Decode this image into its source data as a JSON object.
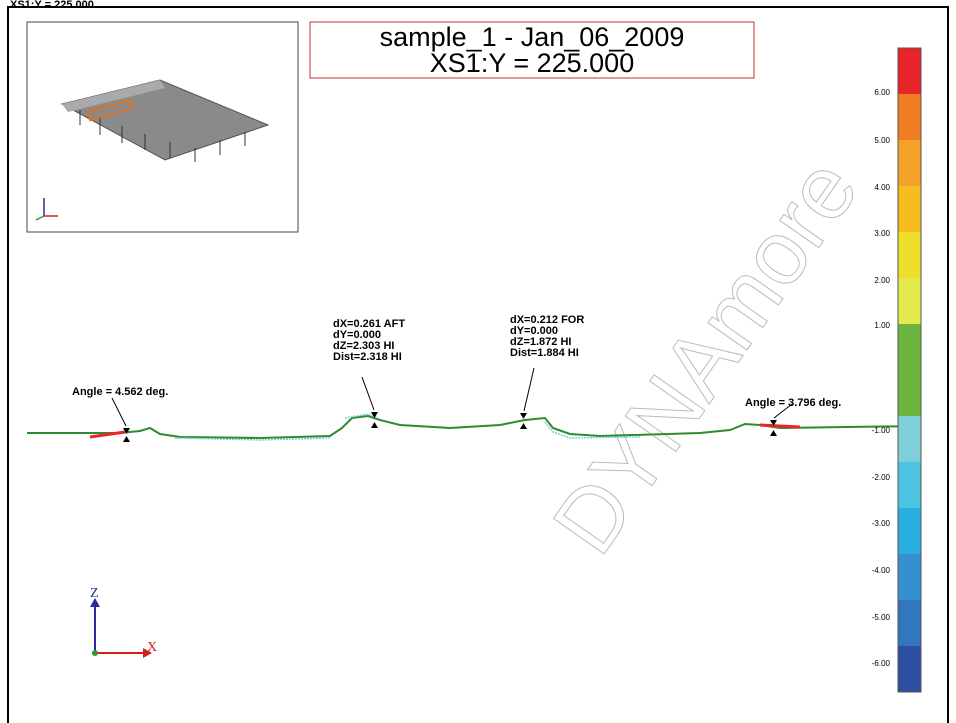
{
  "header": "XS1:Y = 225.000",
  "title": {
    "line1": "sample_1 - Jan_06_2009",
    "line2": "XS1:Y = 225.000"
  },
  "colorbar": {
    "labels": [
      "6.00",
      "5.00",
      "4.00",
      "3.00",
      "2.00",
      "1.00",
      "-1.00",
      "-2.00",
      "-3.00",
      "-4.00",
      "-5.00",
      "-6.00"
    ],
    "colors": [
      "#e8252a",
      "#f07d22",
      "#f5a22a",
      "#f6bd1f",
      "#eee02a",
      "#e4ea4c",
      "#6cb43f",
      "#6cb43f",
      "#7ecfd9",
      "#4cc4e0",
      "#2aaee2",
      "#3590d0",
      "#3276c0",
      "#2e4fa0"
    ]
  },
  "angles": [
    "Angle = 4.562 deg.",
    "Angle = 3.796 deg."
  ],
  "measurements": [
    [
      "dX=0.261 AFT",
      "dY=0.000",
      "dZ=2.303 HI",
      "Dist=2.318 HI"
    ],
    [
      "dX=0.212 FOR",
      "dY=0.000",
      "dZ=1.872 HI",
      "Dist=1.884 HI"
    ]
  ],
  "axes": {
    "z": "Z",
    "x": "X"
  },
  "watermark": "DYNAmore"
}
